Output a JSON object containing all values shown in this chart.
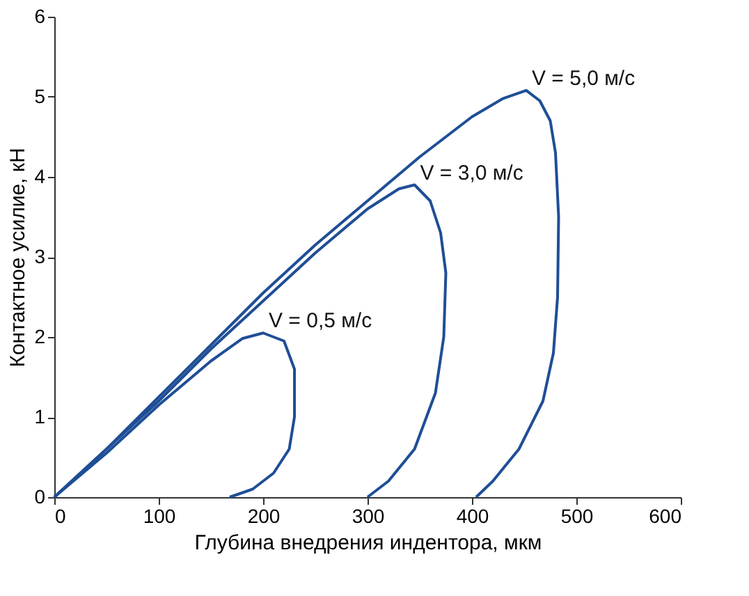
{
  "chart_data": {
    "type": "line",
    "xlabel": "Глубина внедрения индентора, мкм",
    "ylabel": "Контактное усилие, кН",
    "xlim": [
      0,
      600
    ],
    "xticks": [
      0,
      100,
      200,
      300,
      400,
      500,
      600
    ],
    "ylim": [
      0,
      6
    ],
    "yticks": [
      0,
      1,
      2,
      3,
      4,
      5,
      6
    ],
    "grid": false,
    "legend": false,
    "marker": "none",
    "line_style": "solid",
    "series": [
      {
        "name": "V = 0,5 м/с",
        "color": "#1f4e96",
        "x": [
          0,
          50,
          100,
          150,
          180,
          200,
          220,
          230,
          230,
          225,
          210,
          190,
          168
        ],
        "values": [
          0,
          0.55,
          1.15,
          1.7,
          1.98,
          2.05,
          1.95,
          1.6,
          1.0,
          0.6,
          0.3,
          0.1,
          0
        ]
      },
      {
        "name": "V = 3,0 м/с",
        "color": "#1f4e96",
        "x": [
          0,
          50,
          100,
          150,
          200,
          250,
          300,
          330,
          345,
          360,
          370,
          375,
          373,
          365,
          345,
          320,
          305,
          300
        ],
        "values": [
          0,
          0.6,
          1.2,
          1.85,
          2.45,
          3.05,
          3.6,
          3.85,
          3.9,
          3.7,
          3.3,
          2.8,
          2.0,
          1.3,
          0.6,
          0.2,
          0.05,
          0
        ]
      },
      {
        "name": "V = 5,0 м/с",
        "color": "#1f4e96",
        "x": [
          0,
          50,
          100,
          150,
          200,
          250,
          300,
          350,
          400,
          430,
          452,
          465,
          475,
          480,
          483,
          482,
          478,
          468,
          445,
          420,
          404
        ],
        "values": [
          0,
          0.6,
          1.25,
          1.9,
          2.55,
          3.15,
          3.7,
          4.25,
          4.75,
          4.98,
          5.08,
          4.95,
          4.7,
          4.3,
          3.5,
          2.5,
          1.8,
          1.2,
          0.6,
          0.2,
          0
        ]
      }
    ]
  }
}
